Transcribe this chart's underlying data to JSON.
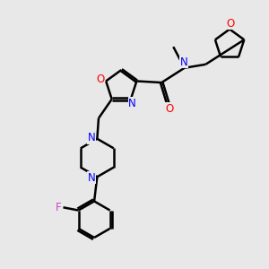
{
  "background_color": "#e8e8e8",
  "bond_color": "#000000",
  "N_color": "#0000ff",
  "O_color": "#ff0000",
  "F_color": "#cc44cc",
  "line_width": 1.8,
  "fig_width": 3.0,
  "fig_height": 3.0,
  "dpi": 100,
  "xlim": [
    0,
    9
  ],
  "ylim": [
    0,
    9
  ]
}
